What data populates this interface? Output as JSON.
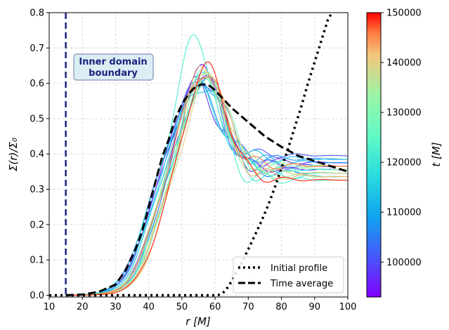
{
  "chart_data": {
    "type": "line",
    "title": "",
    "xlabel": "r [M]",
    "ylabel": "Σ(r)/Σ₀",
    "xlim": [
      10,
      100
    ],
    "ylim": [
      -0.005,
      0.8
    ],
    "xticks": [
      10,
      20,
      30,
      40,
      50,
      60,
      70,
      80,
      90,
      100
    ],
    "yticks": [
      0.0,
      0.1,
      0.2,
      0.3,
      0.4,
      0.5,
      0.6,
      0.7,
      0.8
    ],
    "xtick_labels": [
      "10",
      "20",
      "30",
      "40",
      "50",
      "60",
      "70",
      "80",
      "90",
      "100"
    ],
    "ytick_labels": [
      "0.0",
      "0.1",
      "0.2",
      "0.3",
      "0.4",
      "0.5",
      "0.6",
      "0.7",
      "0.8"
    ],
    "grid": true,
    "legend_position": "bottom-right",
    "annotation": {
      "line1": "Inner domain",
      "line2": "boundary",
      "x": 15
    },
    "inner_boundary_r": 15,
    "colorbar": {
      "label": "t [M]",
      "min": 93000,
      "max": 150000,
      "ticks": [
        100000,
        110000,
        120000,
        130000,
        140000,
        150000
      ],
      "tick_labels": [
        "100000",
        "110000",
        "120000",
        "130000",
        "140000",
        "150000"
      ],
      "colormap": "rainbow"
    },
    "series": [
      {
        "name": "Initial profile",
        "style": "dotted",
        "color": "#000000",
        "x": [
          10,
          55,
          60,
          61,
          62,
          63,
          64,
          66,
          68,
          70,
          72,
          74,
          76,
          78,
          80,
          82,
          84,
          86,
          88,
          90,
          92,
          94,
          95.2
        ],
        "y": [
          0,
          0,
          0,
          0.0005,
          0.004,
          0.012,
          0.025,
          0.055,
          0.092,
          0.13,
          0.17,
          0.21,
          0.255,
          0.305,
          0.36,
          0.415,
          0.475,
          0.535,
          0.6,
          0.66,
          0.72,
          0.78,
          0.8
        ]
      },
      {
        "name": "Time average",
        "style": "dashed",
        "color": "#000000",
        "x": [
          15,
          20,
          25,
          30,
          33,
          36,
          38,
          40,
          42,
          44,
          46,
          48,
          50,
          52,
          54,
          56,
          58,
          60,
          62,
          65,
          70,
          75,
          80,
          85,
          90,
          95,
          100
        ],
        "y": [
          0,
          0.002,
          0.01,
          0.03,
          0.07,
          0.13,
          0.18,
          0.25,
          0.32,
          0.39,
          0.44,
          0.5,
          0.54,
          0.57,
          0.59,
          0.597,
          0.595,
          0.58,
          0.56,
          0.53,
          0.49,
          0.45,
          0.42,
          0.395,
          0.38,
          0.365,
          0.35
        ]
      }
    ],
    "time_snapshots": [
      {
        "t": 94000,
        "shift": 0.0,
        "peak": 0.63,
        "tail": 0.36,
        "wiggle": 0.02
      },
      {
        "t": 97000,
        "shift": -1.5,
        "peak": 0.64,
        "tail": 0.38,
        "wiggle": 0.025
      },
      {
        "t": 99000,
        "shift": -2.5,
        "peak": 0.6,
        "tail": 0.37,
        "wiggle": 0.03
      },
      {
        "t": 101000,
        "shift": -1.0,
        "peak": 0.62,
        "tail": 0.4,
        "wiggle": 0.02
      },
      {
        "t": 104000,
        "shift": 0.5,
        "peak": 0.61,
        "tail": 0.35,
        "wiggle": 0.025
      },
      {
        "t": 107000,
        "shift": -2.0,
        "peak": 0.59,
        "tail": 0.39,
        "wiggle": 0.02
      },
      {
        "t": 110000,
        "shift": 1.0,
        "peak": 0.62,
        "tail": 0.38,
        "wiggle": 0.03
      },
      {
        "t": 113000,
        "shift": -0.5,
        "peak": 0.6,
        "tail": 0.39,
        "wiggle": 0.025
      },
      {
        "t": 116000,
        "shift": -1.5,
        "peak": 0.63,
        "tail": 0.36,
        "wiggle": 0.02
      },
      {
        "t": 119000,
        "shift": 0.0,
        "peak": 0.58,
        "tail": 0.34,
        "wiggle": 0.03
      },
      {
        "t": 122000,
        "shift": -3.0,
        "peak": 0.73,
        "tail": 0.33,
        "wiggle": 0.03
      },
      {
        "t": 125000,
        "shift": 1.5,
        "peak": 0.62,
        "tail": 0.35,
        "wiggle": 0.02
      },
      {
        "t": 128000,
        "shift": 0.5,
        "peak": 0.6,
        "tail": 0.37,
        "wiggle": 0.025
      },
      {
        "t": 131000,
        "shift": 2.0,
        "peak": 0.64,
        "tail": 0.36,
        "wiggle": 0.03
      },
      {
        "t": 134000,
        "shift": 1.0,
        "peak": 0.65,
        "tail": 0.34,
        "wiggle": 0.02
      },
      {
        "t": 137000,
        "shift": 0.0,
        "peak": 0.63,
        "tail": 0.37,
        "wiggle": 0.025
      },
      {
        "t": 140000,
        "shift": 2.5,
        "peak": 0.61,
        "tail": 0.35,
        "wiggle": 0.02
      },
      {
        "t": 143000,
        "shift": 1.5,
        "peak": 0.66,
        "tail": 0.34,
        "wiggle": 0.03
      },
      {
        "t": 146000,
        "shift": 0.5,
        "peak": 0.64,
        "tail": 0.37,
        "wiggle": 0.025
      },
      {
        "t": 149000,
        "shift": 2.0,
        "peak": 0.65,
        "tail": 0.33,
        "wiggle": 0.02
      }
    ]
  }
}
